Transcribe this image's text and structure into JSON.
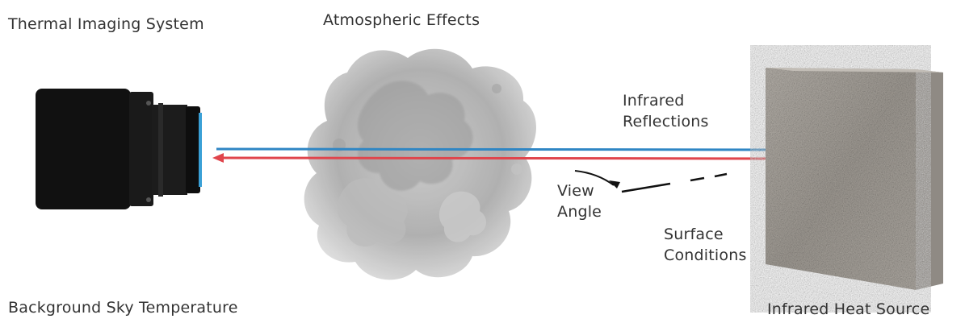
{
  "labels": {
    "thermal_imaging_system": "Thermal Imaging System",
    "atmospheric_effects": "Atmospheric Effects",
    "infrared_reflections": "Infrared\nReflections",
    "view_angle": "View\nAngle",
    "surface_conditions": "Surface\nConditions",
    "background_sky_temperature": "Background Sky Temperature",
    "infrared_heat_source": "Infrared Heat Source"
  },
  "colors": {
    "emitted_beam": "#2f86c4",
    "reflected_beam": "#e0454c",
    "camera_body": "#111111",
    "lens_accent": "#3aa0d6",
    "wall": "#a9a49d",
    "text": "#333333"
  },
  "icons": {
    "camera": "thermal-camera-icon",
    "cloud": "atmosphere-cloud-icon",
    "wall": "concrete-wall-icon"
  }
}
